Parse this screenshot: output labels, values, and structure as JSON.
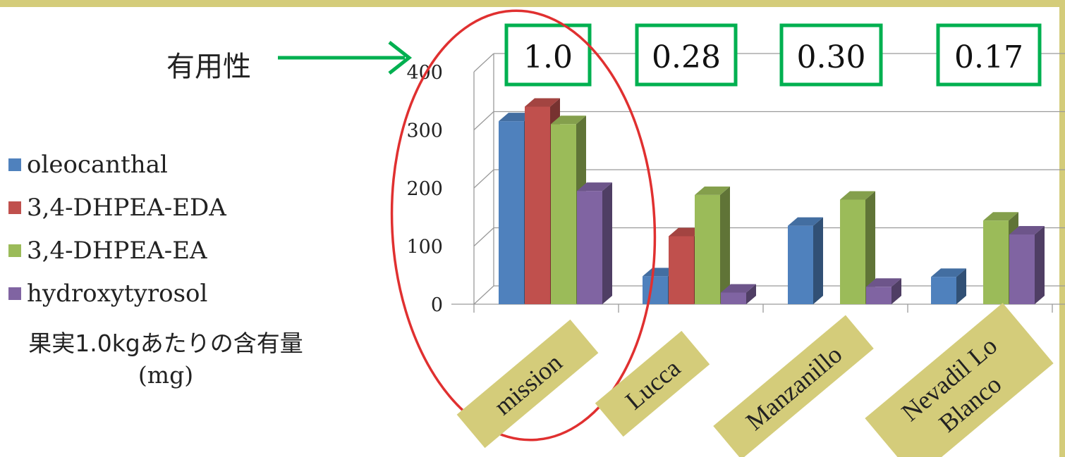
{
  "annotation": {
    "utility_label": "有用性"
  },
  "legend": {
    "items": [
      {
        "label": "oleocanthal",
        "color": "#4f81bd"
      },
      {
        "label": "3,4-DHPEA-EDA",
        "color": "#c0504d"
      },
      {
        "label": "3,4-DHPEA-EA",
        "color": "#9bbb59"
      },
      {
        "label": "hydroxytyrosol",
        "color": "#8064a2"
      }
    ],
    "unit_line1": "果実1.0kgあたりの含有量",
    "unit_line2": "(mg)"
  },
  "colors": {
    "band": "#d4cc7a",
    "arrow": "#00b050",
    "highlight_ellipse": "#e03030"
  },
  "chart_data": {
    "type": "bar",
    "categories": [
      "mission",
      "Lucca",
      "Manzanillo",
      "Nevadil Lo Blanco"
    ],
    "category_tags": [
      [
        "mission"
      ],
      [
        "Lucca"
      ],
      [
        "Manzanillo"
      ],
      [
        "Nevadil Lo",
        "Blanco"
      ]
    ],
    "utility_values": [
      "1.0",
      "0.28",
      "0.30",
      "0.17"
    ],
    "series": [
      {
        "name": "oleocanthal",
        "values": [
          315,
          48,
          135,
          47
        ]
      },
      {
        "name": "3,4-DHPEA-EDA",
        "values": [
          340,
          117,
          0,
          0
        ]
      },
      {
        "name": "3,4-DHPEA-EA",
        "values": [
          310,
          188,
          180,
          144
        ]
      },
      {
        "name": "hydroxytyrosol",
        "values": [
          195,
          20,
          30,
          120
        ]
      }
    ],
    "yticks": [
      "0",
      "100",
      "200",
      "300",
      "400"
    ],
    "ylim": [
      0,
      400
    ],
    "grid": true,
    "legend_position": "left",
    "highlighted_category": "mission"
  }
}
